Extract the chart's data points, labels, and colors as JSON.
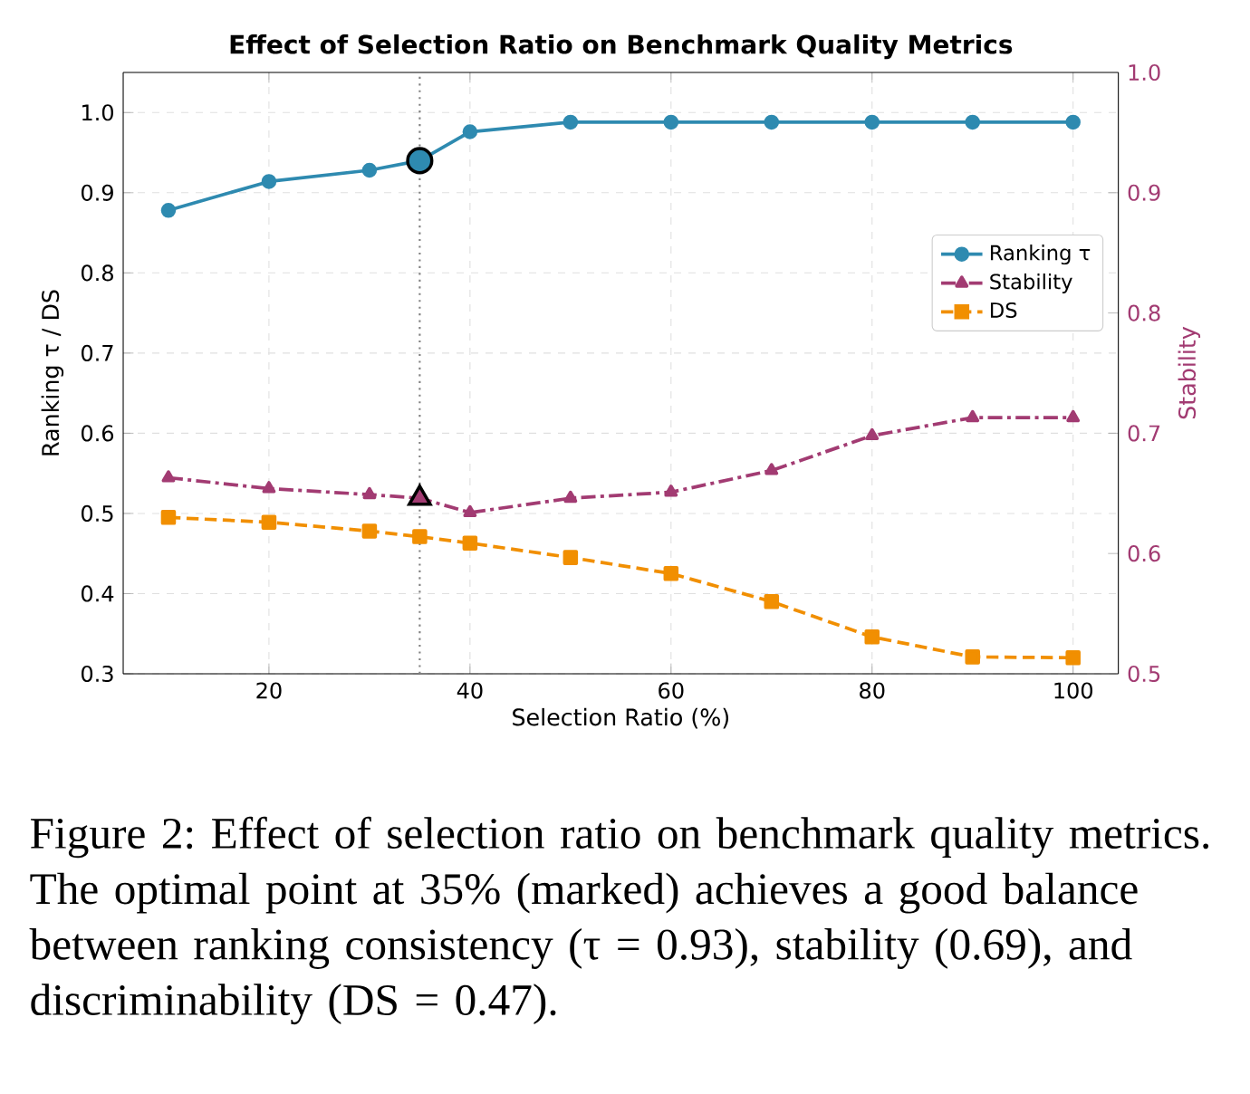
{
  "chart_data": {
    "type": "line",
    "title": "Effect of Selection Ratio on Benchmark Quality Metrics",
    "xlabel": "Selection Ratio (%)",
    "ylabel": "Ranking τ / DS",
    "y2label": "Stability",
    "x": [
      10,
      20,
      30,
      35,
      40,
      50,
      60,
      70,
      80,
      90,
      100
    ],
    "series": [
      {
        "name": "Ranking τ",
        "color": "#2e8ab0",
        "marker": "circle",
        "line_style": "solid",
        "values": [
          0.878,
          0.914,
          0.928,
          0.94,
          0.976,
          0.988,
          0.988,
          0.988,
          0.988,
          0.988,
          0.988
        ]
      },
      {
        "name": "Stability",
        "color": "#a23b72",
        "marker": "triangle",
        "line_style": "dashdot",
        "axis": "y2",
        "values": [
          0.663,
          0.654,
          0.649,
          0.646,
          0.634,
          0.646,
          0.651,
          0.669,
          0.698,
          0.713,
          0.713
        ]
      },
      {
        "name": "DS",
        "color": "#f18f01",
        "marker": "square",
        "line_style": "dashed",
        "values": [
          0.495,
          0.489,
          0.478,
          0.471,
          0.463,
          0.445,
          0.425,
          0.39,
          0.346,
          0.321,
          0.32
        ]
      },
      {
        "type": "scatter",
        "color": "#2e8ab0",
        "marker": "circle",
        "x": [
          35
        ],
        "values": [
          0.94
        ]
      },
      {
        "type": "scatter",
        "color": "#a23b72",
        "marker": "triangle",
        "axis": "y2",
        "x": [
          35
        ],
        "values": [
          0.646
        ]
      }
    ],
    "xlim": [
      5.5,
      104.5
    ],
    "ylim": [
      0.3,
      1.05
    ],
    "y2lim": [
      0.5,
      1.0
    ],
    "xticks": [
      20,
      40,
      60,
      80,
      100
    ],
    "yticks": [
      0.3,
      0.4,
      0.5,
      0.6,
      0.7,
      0.8,
      0.9,
      {
        "value": 1.0,
        "label": "1.0"
      }
    ],
    "y2ticks": [
      0.5,
      0.6,
      0.7,
      0.8,
      0.9,
      {
        "value": 1.0,
        "label": "1.0"
      }
    ],
    "grid": true,
    "legend": "right",
    "ref_lines": [
      {
        "axis": "x",
        "value": 35,
        "color": "#808080",
        "line_style": "dotted"
      }
    ],
    "annotations": [
      "Figure 2: Effect of selection ratio on benchmark quality metrics. The optimal point at 35% (marked) achieves a good balance between ranking consistency (τ = 0.93), stability (0.69), and discriminability (DS = 0.47)."
    ]
  }
}
